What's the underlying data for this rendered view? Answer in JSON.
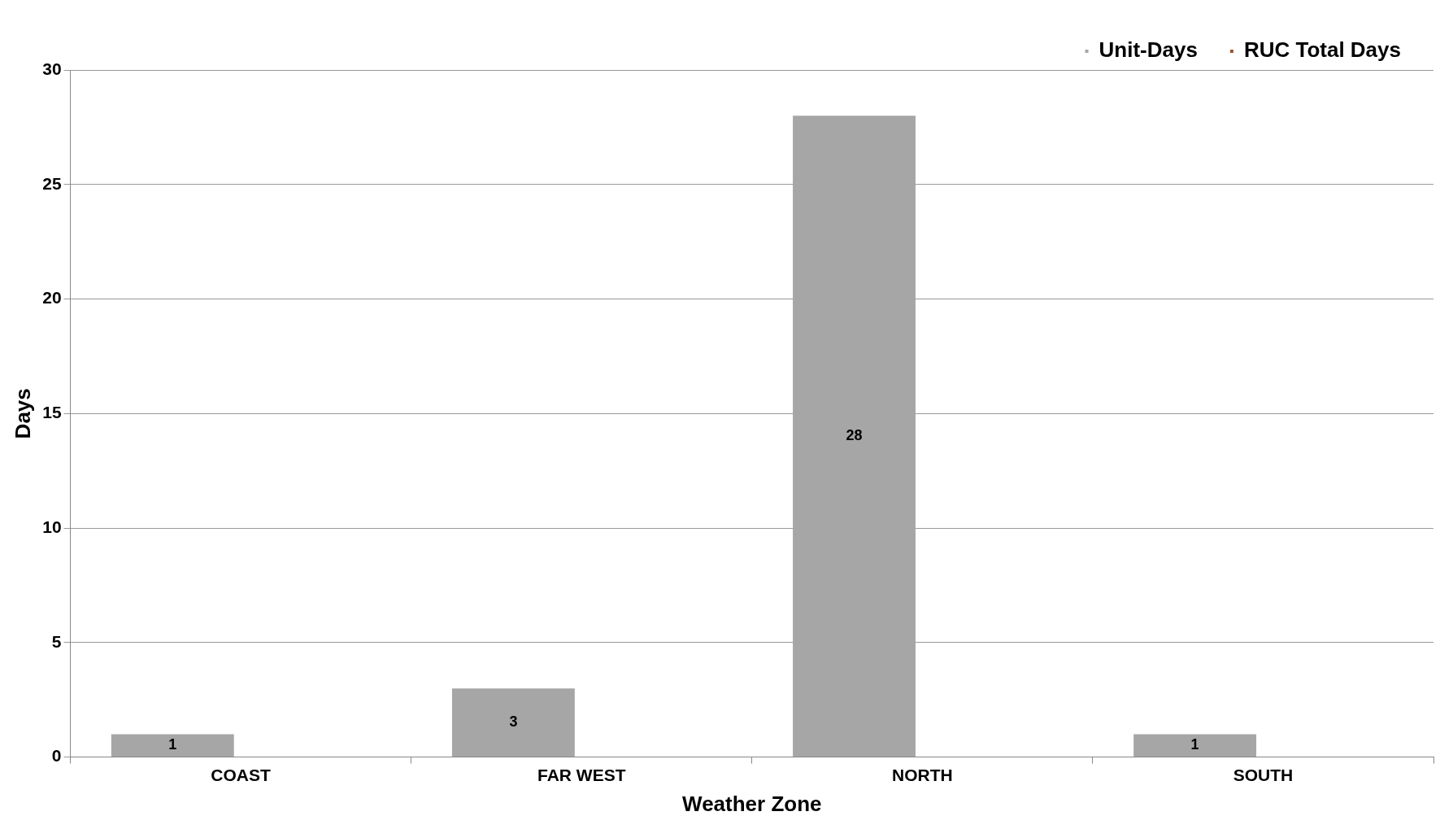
{
  "chart_data": {
    "type": "bar",
    "xlabel": "Weather Zone",
    "ylabel": "Days",
    "categories": [
      "COAST",
      "FAR WEST",
      "NORTH",
      "SOUTH"
    ],
    "series": [
      {
        "name": "Unit-Days",
        "color": "#a6a6a6",
        "values": [
          1,
          3,
          28,
          1
        ]
      },
      {
        "name": "RUC Total Days",
        "color": "#a0522d",
        "values": [
          null,
          null,
          null,
          null
        ]
      }
    ],
    "ylim": [
      0,
      30
    ],
    "yticks": [
      0,
      5,
      10,
      15,
      20,
      25,
      30
    ],
    "grid": "y",
    "legend": "top right",
    "data_labels": true
  }
}
